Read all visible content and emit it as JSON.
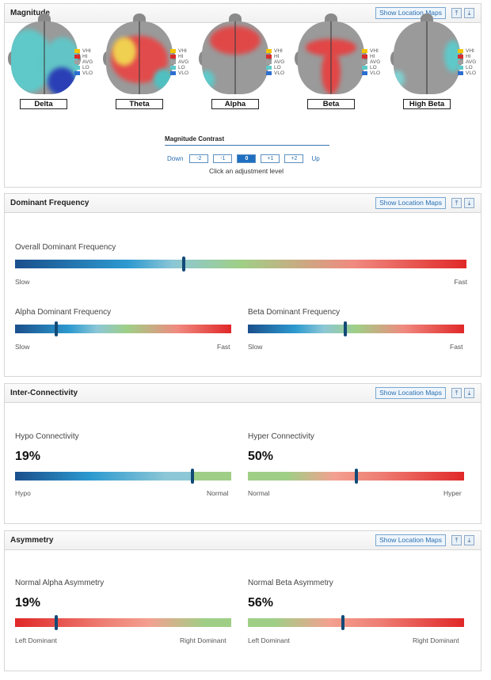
{
  "magnitude": {
    "title": "Magnitude",
    "location_button": "Show Location Maps",
    "legend": [
      "VHI",
      "HI",
      "AVG",
      "LO",
      "VLO"
    ],
    "legend_colors": [
      "#f2c500",
      "#d92b2b",
      "#a0a0a0",
      "#5fc8c8",
      "#2d6fd1"
    ],
    "bands": [
      "Delta",
      "Theta",
      "Alpha",
      "Beta",
      "High Beta"
    ],
    "contrast_title": "Magnitude Contrast",
    "contrast_down": "Down",
    "contrast_up": "Up",
    "contrast_levels": [
      "-2",
      "-1",
      "0",
      "+1",
      "+2"
    ],
    "contrast_selected": "0",
    "contrast_hint": "Click an adjustment level"
  },
  "dominant": {
    "title": "Dominant Frequency",
    "location_button": "Show Location Maps",
    "overall_label": "Overall Dominant Frequency",
    "overall_value": 0.374,
    "alpha_label": "Alpha Dominant Frequency",
    "alpha_value": 0.19,
    "beta_label": "Beta Dominant Frequency",
    "beta_value": 0.45,
    "slow": "Slow",
    "fast": "Fast"
  },
  "connectivity": {
    "title": "Inter-Connectivity",
    "location_button": "Show Location Maps",
    "hypo_label": "Hypo Connectivity",
    "hypo_pct": "19%",
    "hypo_value": 0.82,
    "hyper_label": "Hyper Connectivity",
    "hyper_pct": "50%",
    "hyper_value": 0.5,
    "hypo_left": "Hypo",
    "hypo_right": "Normal",
    "hyper_left": "Normal",
    "hyper_right": "Hyper"
  },
  "asymmetry": {
    "title": "Asymmetry",
    "location_button": "Show Location Maps",
    "alpha_label": "Normal Alpha Asymmetry",
    "alpha_pct": "19%",
    "alpha_value": 0.19,
    "beta_label": "Normal Beta Asymmetry",
    "beta_pct": "56%",
    "beta_value": 0.44,
    "left": "Left Dominant",
    "right": "Right Dominant"
  },
  "colors": {
    "accent": "#1e6fbf",
    "marker": "#124a77"
  }
}
